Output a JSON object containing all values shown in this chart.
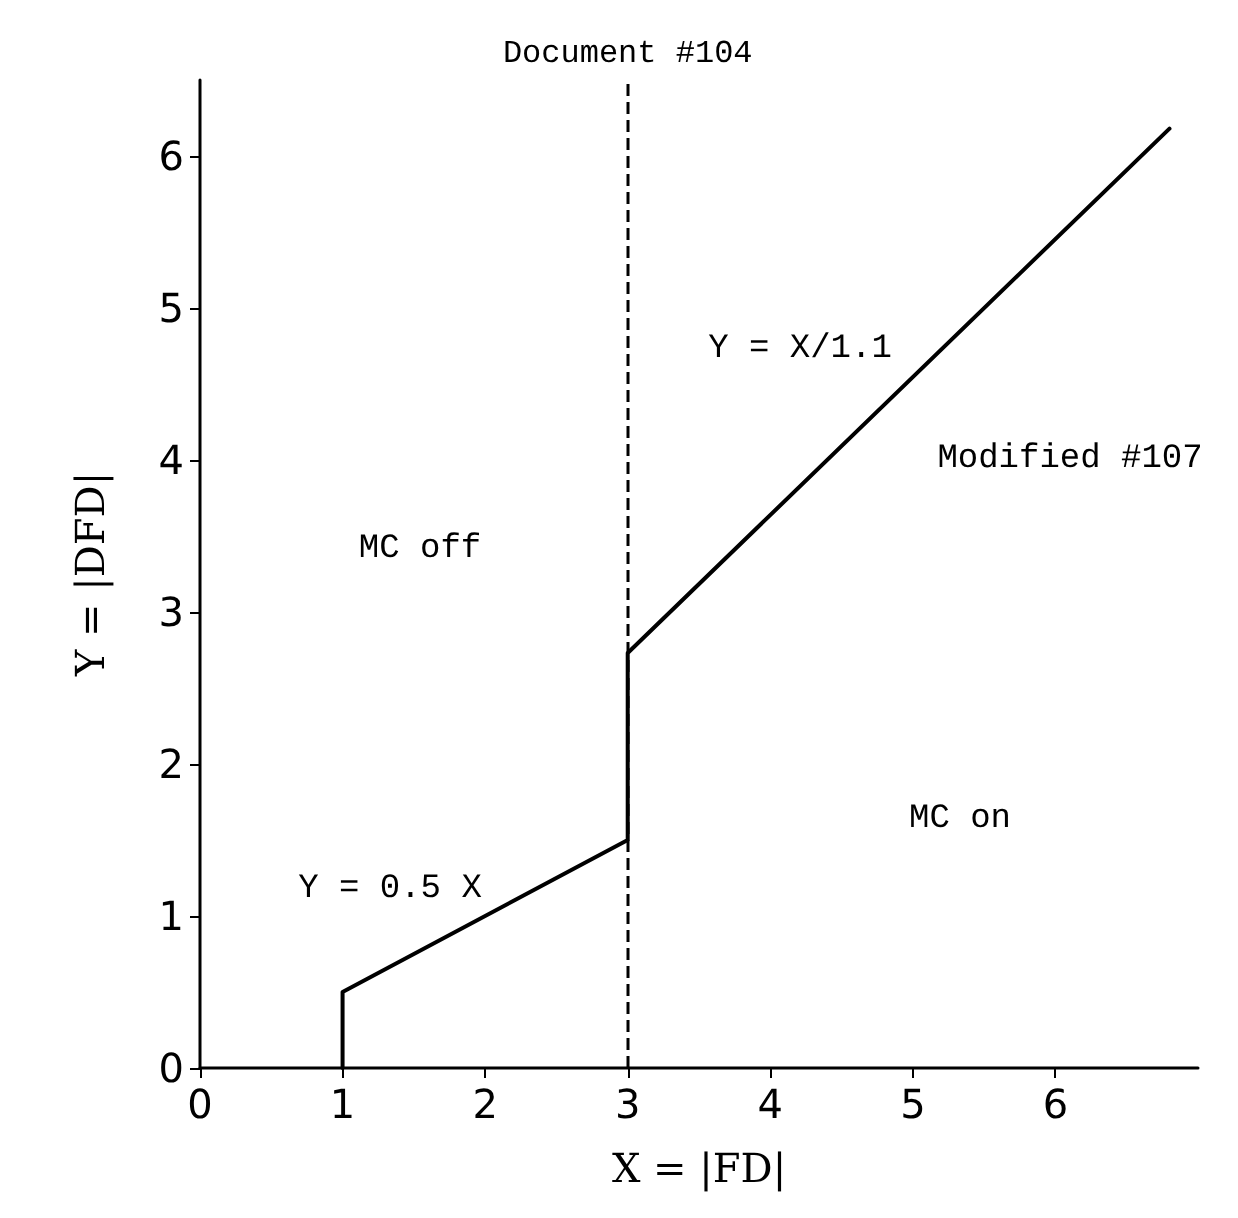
{
  "chart_data": {
    "type": "line",
    "xlabel": "X = |FD|",
    "ylabel": "Y = |DFD|",
    "x": [
      1,
      1,
      3,
      3,
      6.8
    ],
    "series": [
      {
        "color": "#000000",
        "values": [
          0,
          0.5,
          1.5,
          2.73,
          6.18
        ]
      }
    ],
    "xlim": [
      0,
      7
    ],
    "ylim": [
      0,
      6.5
    ],
    "xticks": [
      0,
      1,
      2,
      3,
      4,
      5,
      6
    ],
    "yticks": [
      0,
      1,
      2,
      3,
      4,
      5,
      6
    ],
    "grid": false,
    "marker": "none",
    "line_style": "solid",
    "ref_lines": [
      {
        "axis": "x",
        "value": 3,
        "label": "Document #104",
        "line_style": "dashed",
        "color": "#000000"
      }
    ],
    "annotations": [
      "Y = 0.5 X",
      "Y = X/1.1",
      "Modified #107",
      "MC off",
      "MC on"
    ]
  }
}
